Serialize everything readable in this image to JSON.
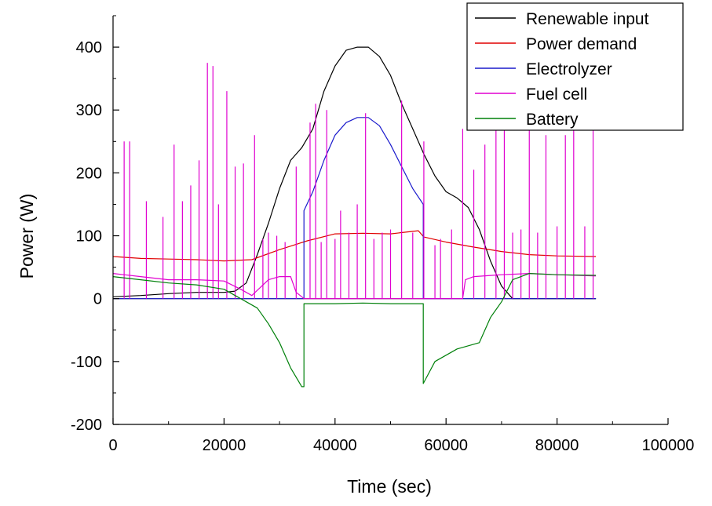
{
  "chart_data": {
    "type": "line",
    "title": "",
    "xlabel": "Time (sec)",
    "ylabel": "Power (W)",
    "xlim": [
      0,
      100000
    ],
    "ylim": [
      -200,
      450
    ],
    "xticks": [
      0,
      20000,
      40000,
      60000,
      80000,
      100000
    ],
    "yticks": [
      -200,
      -100,
      0,
      100,
      200,
      300,
      400
    ],
    "xtick_labels": [
      "0",
      "20000",
      "40000",
      "60000",
      "80000",
      "100000"
    ],
    "ytick_labels": [
      "-200",
      "-100",
      "0",
      "100",
      "200",
      "300",
      "400"
    ],
    "grid": false,
    "legend_position": "top-right",
    "series": [
      {
        "name": "Renewable input",
        "color": "#000000",
        "x": [
          0,
          5000,
          10000,
          15000,
          20000,
          22000,
          24000,
          26000,
          28000,
          30000,
          32000,
          34000,
          36000,
          38000,
          40000,
          42000,
          44000,
          46000,
          48000,
          50000,
          52000,
          54000,
          56000,
          58000,
          60000,
          62000,
          64000,
          66000,
          68000,
          70000,
          72000,
          87000
        ],
        "values": [
          3,
          5,
          8,
          10,
          10,
          12,
          25,
          70,
          120,
          175,
          220,
          240,
          270,
          330,
          370,
          395,
          400,
          400,
          385,
          355,
          310,
          270,
          230,
          195,
          170,
          160,
          145,
          110,
          60,
          20,
          0,
          0
        ]
      },
      {
        "name": "Power demand",
        "color": "#e00000",
        "x": [
          0,
          5000,
          10000,
          15000,
          20000,
          25000,
          30000,
          35000,
          40000,
          45000,
          50000,
          55000,
          56000,
          60000,
          65000,
          70000,
          75000,
          80000,
          87000
        ],
        "values": [
          67,
          64,
          63,
          62,
          60,
          62,
          78,
          92,
          103,
          104,
          103,
          108,
          98,
          90,
          82,
          75,
          70,
          68,
          67
        ]
      },
      {
        "name": "Electrolyzer",
        "color": "#1a1acc",
        "x": [
          0,
          34400,
          34400,
          36000,
          38000,
          40000,
          42000,
          44000,
          46000,
          48000,
          50000,
          52000,
          54000,
          55900,
          55900,
          87000
        ],
        "values": [
          0,
          0,
          140,
          170,
          220,
          260,
          280,
          288,
          288,
          275,
          245,
          210,
          175,
          150,
          0,
          0
        ]
      },
      {
        "name": "Fuel cell",
        "color": "#e000d0",
        "x": [
          0,
          2000,
          5000,
          10000,
          15000,
          20000,
          23000,
          25000,
          28000,
          30000,
          32000,
          33000,
          34000,
          34400,
          55900,
          63000,
          63500,
          65000,
          70000,
          75000,
          80000,
          87000
        ],
        "values": [
          40,
          38,
          35,
          30,
          30,
          28,
          15,
          5,
          30,
          35,
          35,
          10,
          3,
          0,
          0,
          0,
          30,
          35,
          38,
          40,
          38,
          36
        ],
        "spikes": [
          {
            "x": 2000,
            "y": 250
          },
          {
            "x": 3000,
            "y": 250
          },
          {
            "x": 6000,
            "y": 155
          },
          {
            "x": 9000,
            "y": 130
          },
          {
            "x": 11000,
            "y": 245
          },
          {
            "x": 12500,
            "y": 155
          },
          {
            "x": 14000,
            "y": 180
          },
          {
            "x": 15500,
            "y": 220
          },
          {
            "x": 17000,
            "y": 375
          },
          {
            "x": 18000,
            "y": 370
          },
          {
            "x": 19000,
            "y": 150
          },
          {
            "x": 20500,
            "y": 330
          },
          {
            "x": 22000,
            "y": 210
          },
          {
            "x": 23500,
            "y": 215
          },
          {
            "x": 25500,
            "y": 260
          },
          {
            "x": 27000,
            "y": 95
          },
          {
            "x": 28000,
            "y": 105
          },
          {
            "x": 29500,
            "y": 100
          },
          {
            "x": 31000,
            "y": 90
          },
          {
            "x": 33000,
            "y": 210
          },
          {
            "x": 35500,
            "y": 280
          },
          {
            "x": 36500,
            "y": 310
          },
          {
            "x": 37500,
            "y": 90
          },
          {
            "x": 38500,
            "y": 300
          },
          {
            "x": 40000,
            "y": 95
          },
          {
            "x": 41000,
            "y": 140
          },
          {
            "x": 42500,
            "y": 105
          },
          {
            "x": 44000,
            "y": 150
          },
          {
            "x": 45500,
            "y": 295
          },
          {
            "x": 47000,
            "y": 95
          },
          {
            "x": 48500,
            "y": 105
          },
          {
            "x": 50000,
            "y": 110
          },
          {
            "x": 52000,
            "y": 315
          },
          {
            "x": 54000,
            "y": 105
          },
          {
            "x": 56000,
            "y": 250
          },
          {
            "x": 58000,
            "y": 85
          },
          {
            "x": 59000,
            "y": 95
          },
          {
            "x": 61000,
            "y": 110
          },
          {
            "x": 63000,
            "y": 270
          },
          {
            "x": 65000,
            "y": 205
          },
          {
            "x": 67000,
            "y": 245
          },
          {
            "x": 69000,
            "y": 270
          },
          {
            "x": 70500,
            "y": 270
          },
          {
            "x": 72000,
            "y": 105
          },
          {
            "x": 73500,
            "y": 110
          },
          {
            "x": 75000,
            "y": 270
          },
          {
            "x": 76500,
            "y": 105
          },
          {
            "x": 78000,
            "y": 260
          },
          {
            "x": 80000,
            "y": 115
          },
          {
            "x": 81500,
            "y": 260
          },
          {
            "x": 83000,
            "y": 270
          },
          {
            "x": 85000,
            "y": 115
          },
          {
            "x": 86500,
            "y": 270
          }
        ]
      },
      {
        "name": "Battery",
        "color": "#00800a",
        "x": [
          0,
          5000,
          10000,
          15000,
          20000,
          22000,
          24000,
          26000,
          28000,
          30000,
          32000,
          34000,
          34400,
          34400,
          40000,
          45000,
          50000,
          55900,
          55900,
          58000,
          60000,
          62000,
          64000,
          66000,
          68000,
          70000,
          72000,
          75000,
          80000,
          87000
        ],
        "values": [
          35,
          30,
          25,
          22,
          15,
          5,
          -5,
          -15,
          -40,
          -70,
          -110,
          -140,
          -140,
          -8,
          -8,
          -7,
          -8,
          -8,
          -135,
          -100,
          -90,
          -80,
          -75,
          -70,
          -30,
          -5,
          30,
          40,
          38,
          37
        ]
      }
    ]
  }
}
